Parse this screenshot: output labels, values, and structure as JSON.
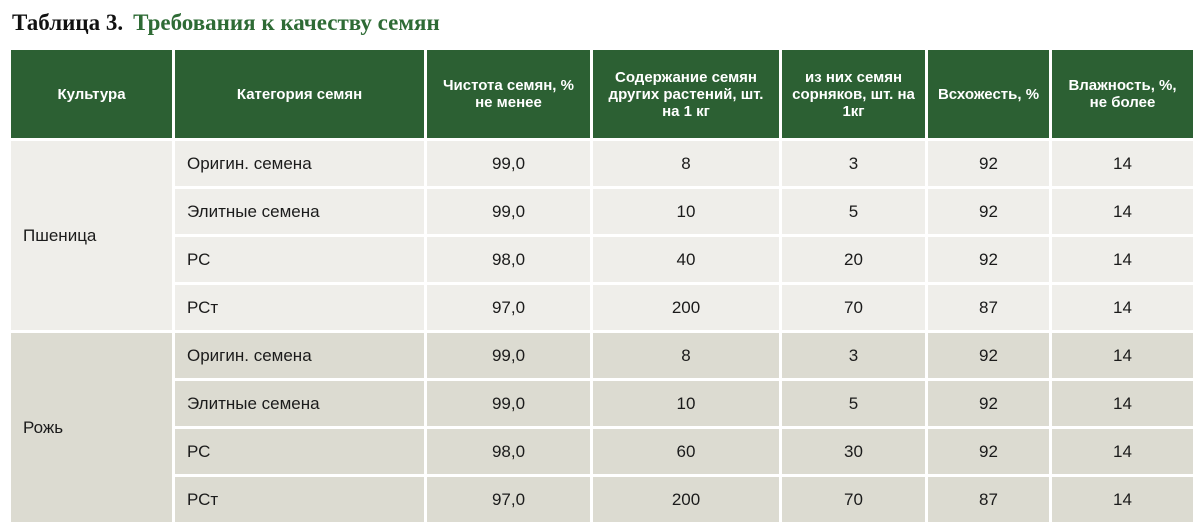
{
  "title": {
    "number": "Таблица 3.",
    "text": "Требования к качеству семян"
  },
  "table": {
    "headers": [
      "Культура",
      "Категория семян",
      "Чистота семян, % не менее",
      "Содержание семян других растений, шт. на 1 кг",
      "из них семян сорняков, шт. на 1кг",
      "Всхожесть, %",
      "Влажность, %, не более"
    ],
    "groups": [
      {
        "crop": "Пшеница",
        "rows": [
          [
            "Оригин. семена",
            "99,0",
            "8",
            "3",
            "92",
            "14"
          ],
          [
            "Элитные семена",
            "99,0",
            "10",
            "5",
            "92",
            "14"
          ],
          [
            "РС",
            "98,0",
            "40",
            "20",
            "92",
            "14"
          ],
          [
            "РСт",
            "97,0",
            "200",
            "70",
            "87",
            "14"
          ]
        ]
      },
      {
        "crop": "Рожь",
        "rows": [
          [
            "Оригин. семена",
            "99,0",
            "8",
            "3",
            "92",
            "14"
          ],
          [
            "Элитные семена",
            "99,0",
            "10",
            "5",
            "92",
            "14"
          ],
          [
            "РС",
            "98,0",
            "60",
            "30",
            "92",
            "14"
          ],
          [
            "РСт",
            "97,0",
            "200",
            "70",
            "87",
            "14"
          ]
        ]
      }
    ]
  }
}
